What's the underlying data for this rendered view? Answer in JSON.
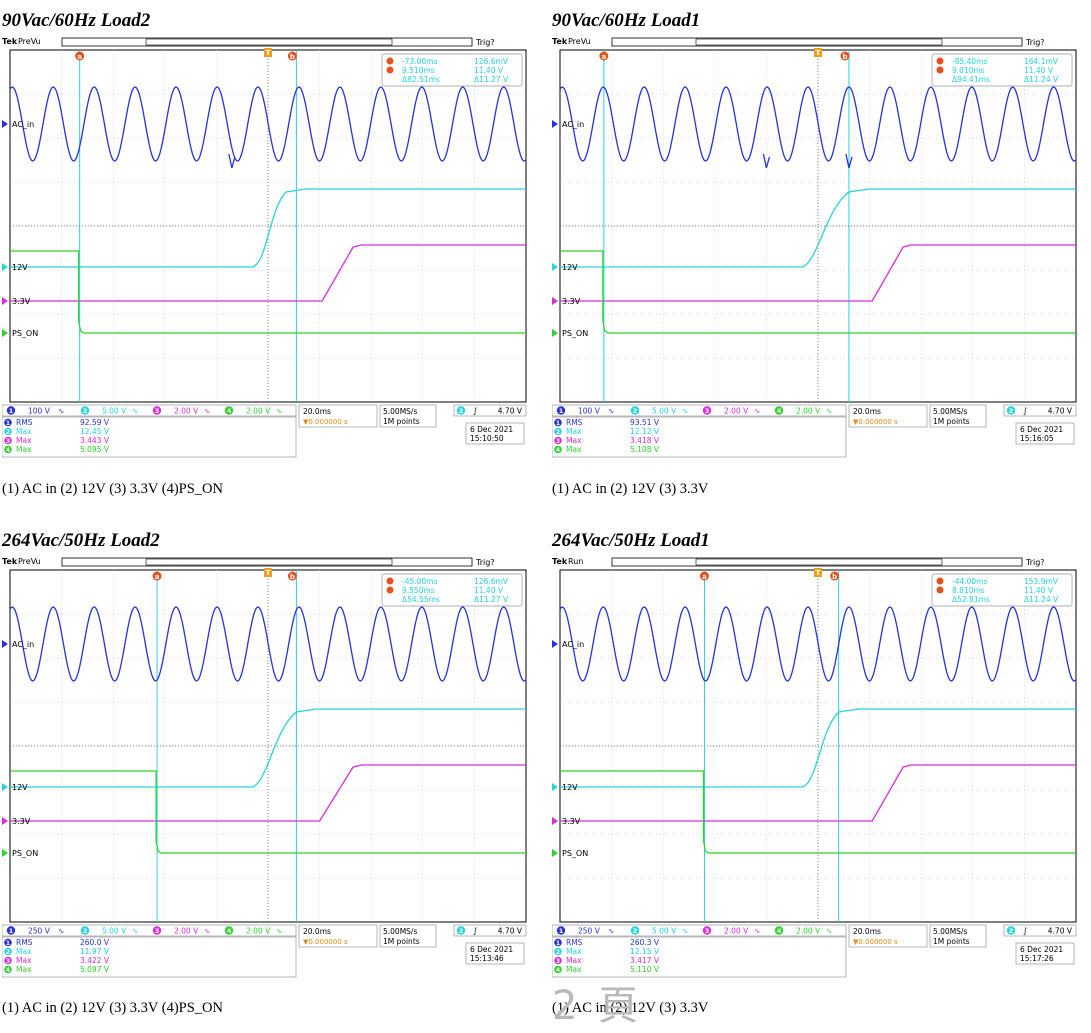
{
  "chart_data": [
    {
      "type": "line",
      "title": "90Vac/60Hz Load2",
      "caption": "(1) AC in (2) 12V (3) 3.3V (4)PS_ON",
      "header": {
        "brand": "Tek",
        "mode": "PreVu",
        "trig": "Trig?"
      },
      "series": [
        {
          "name": "AC_in",
          "channel": 1,
          "color": "#2733d6"
        },
        {
          "name": "12V",
          "channel": 2,
          "color": "#27d3dd"
        },
        {
          "name": "3.3V",
          "channel": 3,
          "color": "#d92ddb"
        },
        {
          "name": "PS_ON",
          "channel": 4,
          "color": "#2ed32b"
        }
      ],
      "cursors": {
        "a_time": "-73.00ms",
        "a_volt": "126.6mV",
        "b_time": "9.510ms",
        "b_volt": "11.40 V",
        "d_time": "Δ82.51ms",
        "d_volt": "Δ11.27 V"
      },
      "scales": [
        "100 V",
        "5.00 V",
        "2.00 V",
        "2.00 V"
      ],
      "timebase": "20.0ms",
      "trigger_pos": "▼0.000000 s",
      "sample_rate": "5.00MS/s",
      "record": "1M points",
      "trigger_level": "4.70 V",
      "measurements": [
        {
          "ch": 1,
          "label": "RMS",
          "value": "92.59 V"
        },
        {
          "ch": 2,
          "label": "Max",
          "value": "12.45 V"
        },
        {
          "ch": 3,
          "label": "Max",
          "value": "3.443 V"
        },
        {
          "ch": 4,
          "label": "Max",
          "value": "5.095 V"
        }
      ],
      "date": "6 Dec 2021",
      "time": "15:10:50",
      "wave": {
        "pson": true,
        "glitches": [
          0.43
        ],
        "cursor_a": 0.135,
        "cursor_b": 0.555,
        "rise12_start": 0.47,
        "rise12_end": 0.535,
        "rise33_start": 0.605,
        "rise33_end": 0.665
      }
    },
    {
      "type": "line",
      "title": "90Vac/60Hz Load1",
      "caption": "(1) AC in (2) 12V (3) 3.3V",
      "header": {
        "brand": "Tek",
        "mode": "PreVu",
        "trig": "Trig?"
      },
      "series": [
        {
          "name": "AC_in",
          "channel": 1,
          "color": "#2733d6"
        },
        {
          "name": "12V",
          "channel": 2,
          "color": "#27d3dd"
        },
        {
          "name": "3.3V",
          "channel": 3,
          "color": "#d92ddb"
        },
        {
          "name": "PS_ON",
          "channel": 4,
          "color": "#2ed32b"
        }
      ],
      "cursors": {
        "a_time": "-85.40ms",
        "a_volt": "164.1mV",
        "b_time": "9.010ms",
        "b_volt": "11.40 V",
        "d_time": "Δ94.41ms",
        "d_volt": "Δ11.24 V"
      },
      "scales": [
        "100 V",
        "5.00 V",
        "2.00 V",
        "2.00 V"
      ],
      "timebase": "20.0ms",
      "trigger_pos": "▼0.000000 s",
      "sample_rate": "5.00MS/s",
      "record": "1M points",
      "trigger_level": "4.70 V",
      "measurements": [
        {
          "ch": 1,
          "label": "RMS",
          "value": "93.51 V"
        },
        {
          "ch": 2,
          "label": "Max",
          "value": "12.12 V"
        },
        {
          "ch": 3,
          "label": "Max",
          "value": "3.418 V"
        },
        {
          "ch": 4,
          "label": "Max",
          "value": "5.108 V"
        }
      ],
      "date": "6 Dec 2021",
      "time": "15:16:05",
      "wave": {
        "pson": true,
        "glitches": [
          0.4,
          0.56
        ],
        "cursor_a": 0.085,
        "cursor_b": 0.56,
        "rise12_start": 0.47,
        "rise12_end": 0.56,
        "rise33_start": 0.605,
        "rise33_end": 0.665
      }
    },
    {
      "type": "line",
      "title": "264Vac/50Hz Load2",
      "caption": "(1) AC in (2) 12V (3) 3.3V (4)PS_ON",
      "header": {
        "brand": "Tek",
        "mode": "PreVu",
        "trig": "Trig?"
      },
      "series": [
        {
          "name": "AC_in",
          "channel": 1,
          "color": "#2733d6"
        },
        {
          "name": "12V",
          "channel": 2,
          "color": "#27d3dd"
        },
        {
          "name": "3.3V",
          "channel": 3,
          "color": "#d92ddb"
        },
        {
          "name": "PS_ON",
          "channel": 4,
          "color": "#2ed32b"
        }
      ],
      "cursors": {
        "a_time": "-45.00ms",
        "a_volt": "126.6mV",
        "b_time": "9.550ms",
        "b_volt": "11.40 V",
        "d_time": "Δ54.55ms",
        "d_volt": "Δ11.27 V"
      },
      "scales": [
        "250 V",
        "5.00 V",
        "2.00 V",
        "2.00 V"
      ],
      "timebase": "20.0ms",
      "trigger_pos": "▼0.000000 s",
      "sample_rate": "5.00MS/s",
      "record": "1M points",
      "trigger_level": "4.70 V",
      "measurements": [
        {
          "ch": 1,
          "label": "RMS",
          "value": "260.0 V"
        },
        {
          "ch": 2,
          "label": "Max",
          "value": "11.97 V"
        },
        {
          "ch": 3,
          "label": "Max",
          "value": "3.422 V"
        },
        {
          "ch": 4,
          "label": "Max",
          "value": "5.097 V"
        }
      ],
      "date": "6 Dec 2021",
      "time": "15:13:46",
      "wave": {
        "pson": true,
        "glitches": [],
        "cursor_a": 0.285,
        "cursor_b": 0.555,
        "rise12_start": 0.47,
        "rise12_end": 0.555,
        "rise33_start": 0.6,
        "rise33_end": 0.665
      }
    },
    {
      "type": "line",
      "title": "264Vac/50Hz Load1",
      "caption": "(1) AC in (2) 12V (3) 3.3V",
      "header": {
        "brand": "Tek",
        "mode": "Run",
        "trig": "Trig?"
      },
      "series": [
        {
          "name": "AC_in",
          "channel": 1,
          "color": "#2733d6"
        },
        {
          "name": "12V",
          "channel": 2,
          "color": "#27d3dd"
        },
        {
          "name": "3.3V",
          "channel": 3,
          "color": "#d92ddb"
        },
        {
          "name": "PS_ON",
          "channel": 4,
          "color": "#2ed32b"
        }
      ],
      "cursors": {
        "a_time": "-44.00ms",
        "a_volt": "153.9mV",
        "b_time": "8.810ms",
        "b_volt": "11.40 V",
        "d_time": "Δ52.81ms",
        "d_volt": "Δ11.24 V"
      },
      "scales": [
        "250 V",
        "5.00 V",
        "2.00 V",
        "2.00 V"
      ],
      "timebase": "20.0ms",
      "trigger_pos": "▼0.000000 s",
      "sample_rate": "5.00MS/s",
      "record": "1M points",
      "trigger_level": "4.70 V",
      "measurements": [
        {
          "ch": 1,
          "label": "RMS",
          "value": "260.3 V"
        },
        {
          "ch": 2,
          "label": "Max",
          "value": "12.15 V"
        },
        {
          "ch": 3,
          "label": "Max",
          "value": "3.417 V"
        },
        {
          "ch": 4,
          "label": "Max",
          "value": "5.110 V"
        }
      ],
      "date": "6 Dec 2021",
      "time": "15:17:26",
      "wave": {
        "pson": true,
        "glitches": [],
        "cursor_a": 0.28,
        "cursor_b": 0.54,
        "rise12_start": 0.47,
        "rise12_end": 0.54,
        "rise33_start": 0.605,
        "rise33_end": 0.665
      }
    }
  ],
  "watermark": "2 頁"
}
